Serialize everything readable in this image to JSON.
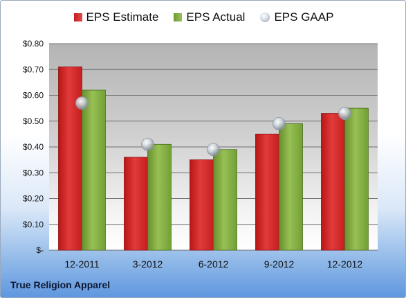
{
  "chart_data": {
    "type": "bar",
    "categories": [
      "12-2011",
      "3-2012",
      "6-2012",
      "9-2012",
      "12-2012"
    ],
    "series": [
      {
        "name": "EPS Estimate",
        "values": [
          0.71,
          0.36,
          0.35,
          0.45,
          0.53
        ],
        "color": "#d12b2b"
      },
      {
        "name": "EPS Actual",
        "values": [
          0.62,
          0.41,
          0.39,
          0.49,
          0.55
        ],
        "color": "#7aa33a"
      },
      {
        "name": "EPS GAAP",
        "values": [
          0.57,
          0.41,
          0.39,
          0.49,
          0.53
        ],
        "color": "#b8c0ca",
        "marker": "circle"
      }
    ],
    "ylim": [
      0,
      0.8
    ],
    "yticks": [
      "$-",
      "$0.10",
      "$0.20",
      "$0.30",
      "$0.40",
      "$0.50",
      "$0.60",
      "$0.70",
      "$0.80"
    ],
    "grid": true,
    "legend": "top-center"
  },
  "footer": {
    "company": "True Religion Apparel"
  }
}
